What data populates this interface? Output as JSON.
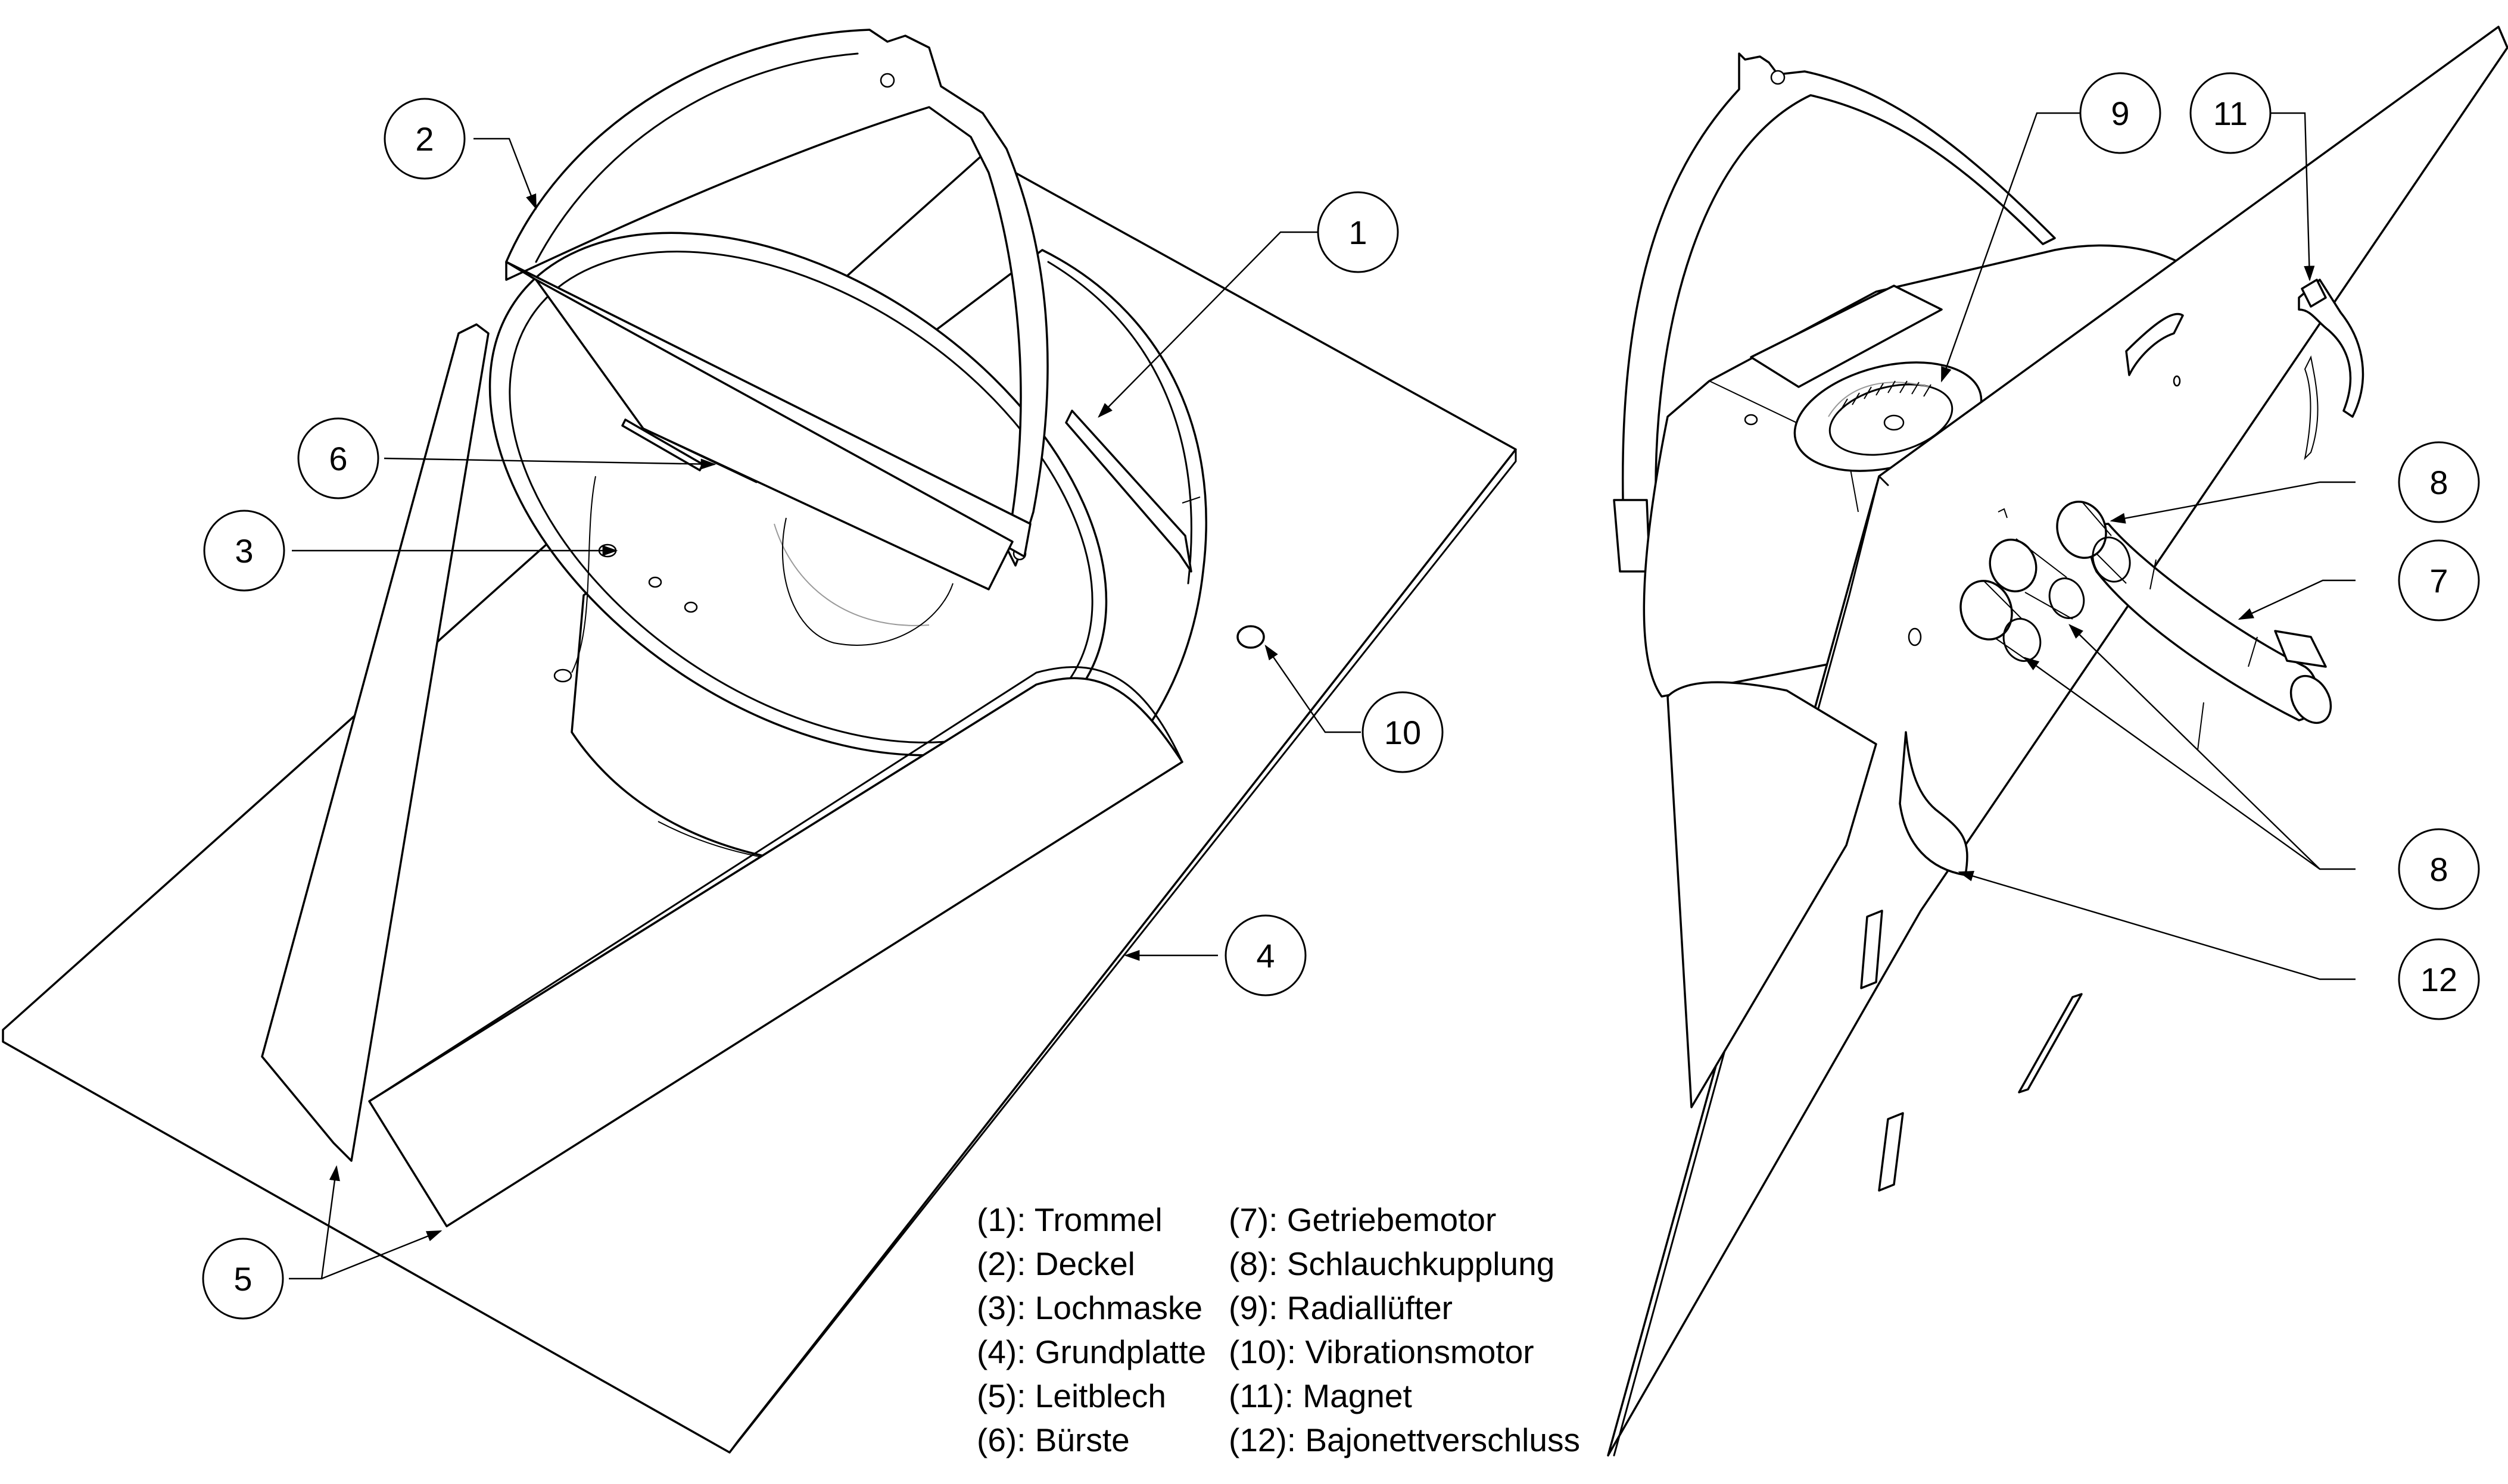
{
  "callouts": [
    {
      "id": "c1",
      "label": "1"
    },
    {
      "id": "c2",
      "label": "2"
    },
    {
      "id": "c3",
      "label": "3"
    },
    {
      "id": "c4",
      "label": "4"
    },
    {
      "id": "c5",
      "label": "5"
    },
    {
      "id": "c6",
      "label": "6"
    },
    {
      "id": "c7",
      "label": "7"
    },
    {
      "id": "c8a",
      "label": "8"
    },
    {
      "id": "c8b",
      "label": "8"
    },
    {
      "id": "c9",
      "label": "9"
    },
    {
      "id": "c10",
      "label": "10"
    },
    {
      "id": "c11",
      "label": "11"
    },
    {
      "id": "c12",
      "label": "12"
    }
  ],
  "legend": {
    "left": [
      "(1): Trommel",
      "(2): Deckel",
      "(3): Lochmaske",
      "(4): Grundplatte",
      "(5): Leitblech",
      "(6): Bürste"
    ],
    "right": [
      "(7): Getriebemotor",
      "(8): Schlauchkupplung",
      "(9): Radiallüfter",
      "(10): Vibrationsmotor",
      "(11): Magnet",
      "(12): Bajonettverschluss"
    ]
  }
}
